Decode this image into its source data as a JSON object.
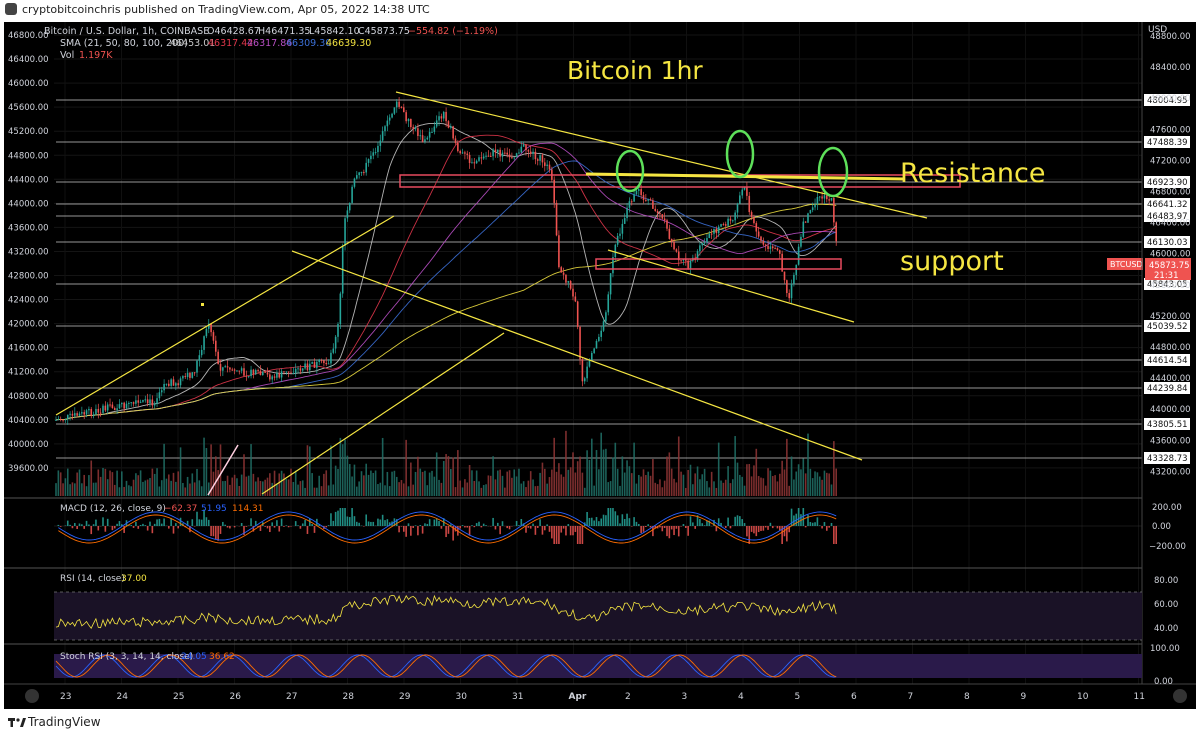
{
  "publisher": "cryptobitcoinchris published on TradingView.com, Apr 05, 2022 14:38 UTC",
  "footer_brand": "TradingView",
  "header": {
    "symbol": "Bitcoin / U.S. Dollar, 1h, COINBASE",
    "open": "O46428.67",
    "high": "H46471.35",
    "low": "L45842.10",
    "close": "C45873.75",
    "change": "−554.82 (−1.19%)",
    "sma_label": "SMA (21, 50, 80, 100, 200)",
    "sma_values": [
      "46453.01",
      "46317.42",
      "46317.86",
      "46309.30",
      "46639.30"
    ],
    "sma_colors": [
      "#c8c8c8",
      "#e0364b",
      "#b84fc4",
      "#3b6fd6",
      "#f0e040"
    ],
    "vol_label": "Vol",
    "vol_value": "1.197K",
    "currency": "USD"
  },
  "annotations": {
    "title": "Bitcoin 1hr",
    "resistance": "Resistance",
    "support": "support"
  },
  "colors": {
    "up": "#26a69a",
    "down": "#ef5350",
    "trend": "#f5e642",
    "circle": "#5ee05a",
    "zone": "#e84a5f"
  },
  "chart_data": {
    "type": "candlestick",
    "x_ticks": [
      "23",
      "24",
      "25",
      "26",
      "27",
      "28",
      "29",
      "30",
      "31",
      "Apr",
      "2",
      "3",
      "4",
      "5",
      "6",
      "7",
      "8",
      "9",
      "10",
      "11"
    ],
    "left_axis": [
      "46800.00",
      "46400.00",
      "46000.00",
      "45600.00",
      "45200.00",
      "44800.00",
      "44400.00",
      "44000.00",
      "43600.00",
      "43200.00",
      "42800.00",
      "42400.00",
      "42000.00",
      "41600.00",
      "41200.00",
      "40800.00",
      "40400.00",
      "40000.00",
      "39600.00"
    ],
    "right_axis": [
      "48800.00",
      "48400.00",
      "48000.00",
      "47600.00",
      "47200.00",
      "46800.00",
      "46400.00",
      "46000.00",
      "45600.00",
      "45200.00",
      "44800.00",
      "44400.00",
      "44000.00",
      "43600.00",
      "43200.00"
    ],
    "h_levels": [
      "48004.95",
      "47488.39",
      "46923.90",
      "46641.32",
      "46483.97",
      "46130.03",
      "45843.05",
      "45039.52",
      "44614.54",
      "44239.84",
      "43805.51",
      "43328.73"
    ],
    "last_price": {
      "symbol": "BTCUSD",
      "price": "45873.75",
      "countdown": "21:31"
    },
    "macd": {
      "label": "MACD (12, 26, close, 9)",
      "values": [
        "−62.37",
        "51.95",
        "114.31"
      ],
      "axis": [
        "200.00",
        "0.00",
        "−200.00"
      ]
    },
    "rsi": {
      "label": "RSI (14, close)",
      "value": "37.00",
      "axis": [
        "80.00",
        "60.00",
        "40.00"
      ]
    },
    "stoch_rsi": {
      "label": "Stoch RSI (3, 3, 14, 14, close)",
      "values": [
        "24.05",
        "36.62"
      ],
      "axis": [
        "100.00",
        "0.00"
      ]
    }
  }
}
